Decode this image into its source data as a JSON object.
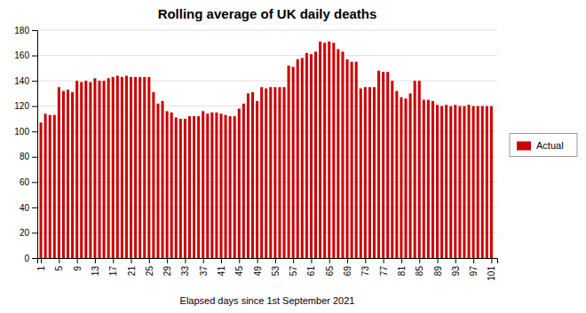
{
  "chart_data": {
    "type": "bar",
    "title": "Rolling average of UK daily deaths",
    "xlabel": "Elapsed days since 1st September 2021",
    "x": [
      1,
      2,
      3,
      4,
      5,
      6,
      7,
      8,
      9,
      10,
      11,
      12,
      13,
      14,
      15,
      16,
      17,
      18,
      19,
      20,
      21,
      22,
      23,
      24,
      25,
      26,
      27,
      28,
      29,
      30,
      31,
      32,
      33,
      34,
      35,
      36,
      37,
      38,
      39,
      40,
      41,
      42,
      43,
      44,
      45,
      46,
      47,
      48,
      49,
      50,
      51,
      52,
      53,
      54,
      55,
      56,
      57,
      58,
      59,
      60,
      61,
      62,
      63,
      64,
      65,
      66,
      67,
      68,
      69,
      70,
      71,
      72,
      73,
      74,
      75,
      76,
      77,
      78,
      79,
      80,
      81,
      82,
      83,
      84,
      85,
      86,
      87,
      88,
      89,
      90,
      91,
      92,
      93,
      94,
      95,
      96,
      97,
      98,
      99,
      100,
      101
    ],
    "series": [
      {
        "name": "Actual",
        "color": "#CC0000",
        "values": [
          107,
          114,
          113,
          113,
          135,
          132,
          133,
          131,
          140,
          139,
          140,
          139,
          142,
          140,
          140,
          142,
          143,
          144,
          143,
          144,
          143,
          143,
          143,
          143,
          143,
          131,
          122,
          124,
          116,
          115,
          111,
          110,
          110,
          112,
          112,
          112,
          116,
          114,
          115,
          115,
          114,
          113,
          112,
          112,
          118,
          122,
          130,
          131,
          124,
          135,
          134,
          135,
          135,
          135,
          135,
          152,
          151,
          157,
          158,
          162,
          161,
          163,
          171,
          170,
          171,
          170,
          165,
          163,
          157,
          155,
          155,
          134,
          135,
          135,
          135,
          148,
          147,
          147,
          140,
          132,
          127,
          126,
          130,
          140,
          140,
          125,
          125,
          124,
          121,
          120,
          121,
          120,
          121,
          120,
          120,
          121,
          120,
          120,
          120,
          120,
          120
        ]
      }
    ],
    "xlim": [
      0.2,
      102.3
    ],
    "xticks": [
      1,
      5,
      9,
      13,
      17,
      21,
      25,
      29,
      33,
      37,
      41,
      45,
      49,
      53,
      57,
      61,
      65,
      69,
      73,
      77,
      81,
      85,
      89,
      93,
      97,
      101
    ],
    "ylim": [
      0,
      180
    ],
    "yticks": [
      0,
      20,
      40,
      60,
      80,
      100,
      120,
      140,
      160,
      180
    ],
    "grid": true,
    "legend": "right"
  }
}
